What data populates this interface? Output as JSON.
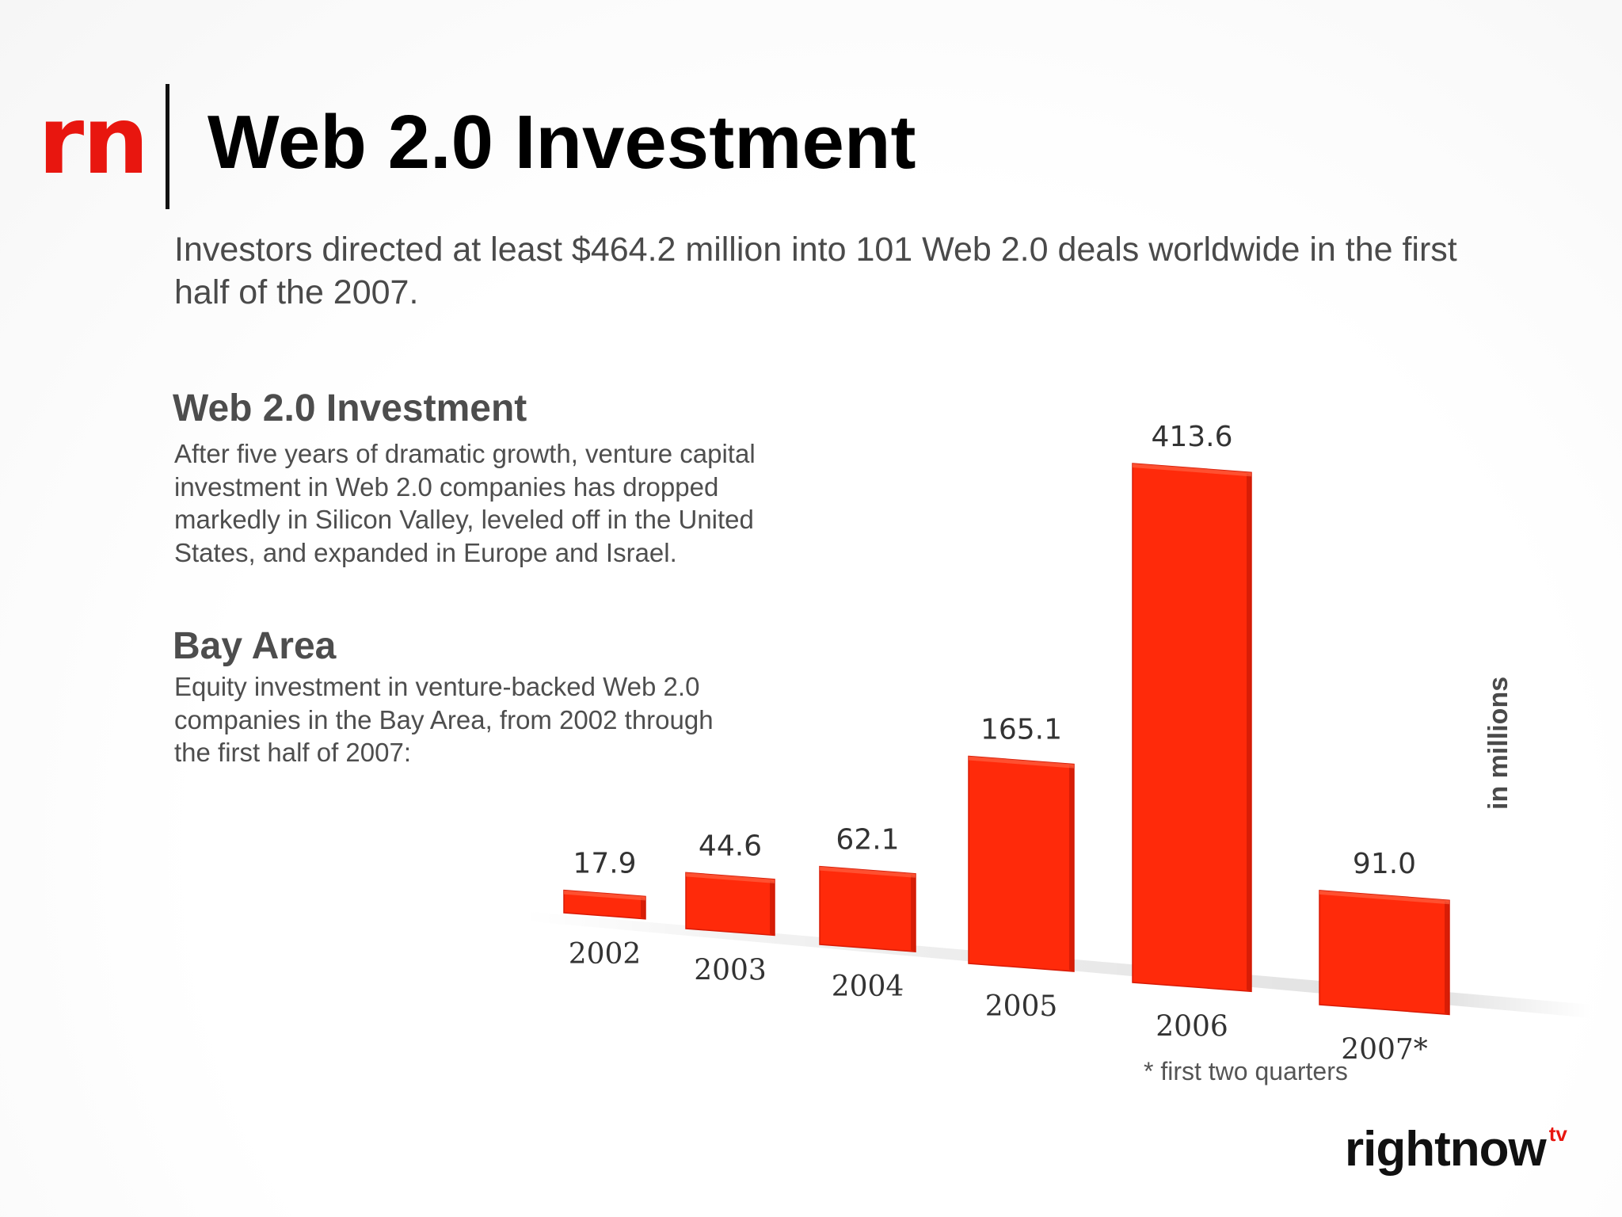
{
  "header": {
    "logo_text": "rn",
    "title": "Web 2.0 Investment",
    "subtitle": "Investors directed at least $464.2 million into 101 Web 2.0 deals worldwide in the first half of the 2007."
  },
  "sections": [
    {
      "heading": "Web 2.0 Investment",
      "body": "After five years of dramatic growth, venture capital investment in Web 2.0 companies has dropped markedly in Silicon Valley, leveled off in the United States, and expanded in Europe and Israel."
    },
    {
      "heading": "Bay Area",
      "body": "Equity investment in venture-backed Web 2.0 companies in the Bay Area, from 2002 through the first half of 2007:"
    }
  ],
  "chart_data": {
    "type": "bar",
    "categories": [
      "2002",
      "2003",
      "2004",
      "2005",
      "2006",
      "2007*"
    ],
    "values": [
      17.9,
      44.6,
      62.1,
      165.1,
      413.6,
      91.0
    ],
    "value_labels": [
      "17.9",
      "44.6",
      "62.1",
      "165.1",
      "413.6",
      "91.0"
    ],
    "title": "",
    "xlabel": "",
    "ylabel": "in millions",
    "ylim": [
      0,
      413.6
    ],
    "grid": false,
    "bar_color": "#ff2a0a",
    "footnote": "* first two quarters"
  },
  "brand": {
    "name": "rightnow",
    "suffix": "tv",
    "accent": "#e8160f"
  }
}
